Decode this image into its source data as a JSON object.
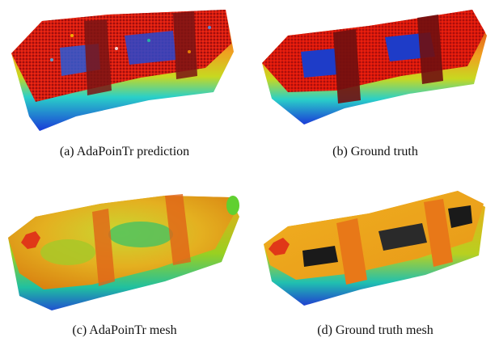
{
  "figure": {
    "panels": [
      {
        "id": "a",
        "caption": "(a)  AdaPoinTr prediction"
      },
      {
        "id": "b",
        "caption": "(b)  Ground truth"
      },
      {
        "id": "c",
        "caption": "(c)  AdaPoinTr mesh"
      },
      {
        "id": "d",
        "caption": "(d)  Ground truth mesh"
      }
    ]
  }
}
